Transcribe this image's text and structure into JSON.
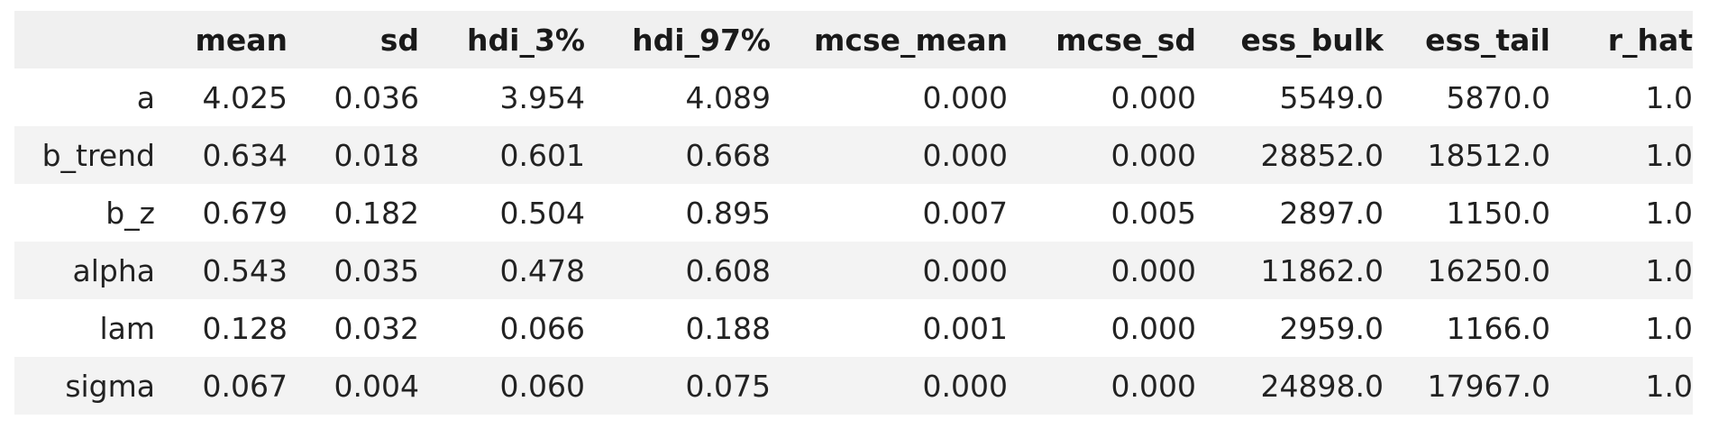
{
  "table": {
    "columns": [
      "",
      "mean",
      "sd",
      "hdi_3%",
      "hdi_97%",
      "mcse_mean",
      "mcse_sd",
      "ess_bulk",
      "ess_tail",
      "r_hat"
    ],
    "rows": [
      {
        "index": "a",
        "cells": [
          "4.025",
          "0.036",
          "3.954",
          "4.089",
          "0.000",
          "0.000",
          "5549.0",
          "5870.0",
          "1.0"
        ]
      },
      {
        "index": "b_trend",
        "cells": [
          "0.634",
          "0.018",
          "0.601",
          "0.668",
          "0.000",
          "0.000",
          "28852.0",
          "18512.0",
          "1.0"
        ]
      },
      {
        "index": "b_z",
        "cells": [
          "0.679",
          "0.182",
          "0.504",
          "0.895",
          "0.007",
          "0.005",
          "2897.0",
          "1150.0",
          "1.0"
        ]
      },
      {
        "index": "alpha",
        "cells": [
          "0.543",
          "0.035",
          "0.478",
          "0.608",
          "0.000",
          "0.000",
          "11862.0",
          "16250.0",
          "1.0"
        ]
      },
      {
        "index": "lam",
        "cells": [
          "0.128",
          "0.032",
          "0.066",
          "0.188",
          "0.001",
          "0.000",
          "2959.0",
          "1166.0",
          "1.0"
        ]
      },
      {
        "index": "sigma",
        "cells": [
          "0.067",
          "0.004",
          "0.060",
          "0.075",
          "0.000",
          "0.000",
          "24898.0",
          "17967.0",
          "1.0"
        ]
      }
    ]
  }
}
